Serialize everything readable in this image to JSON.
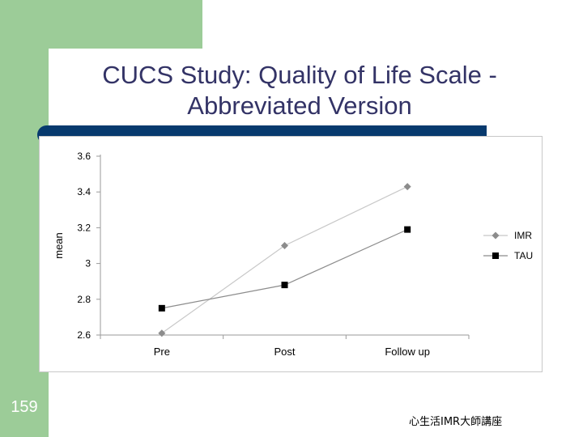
{
  "slide": {
    "title_line1": "CUCS Study: Quality of Life Scale -",
    "title_line2": "Abbreviated Version",
    "number": "159",
    "footer": "心生活IMR大師講座",
    "colors": {
      "green": "#9ccc98",
      "navy": "#073a6e",
      "title": "#333366"
    }
  },
  "chart_data": {
    "type": "line",
    "categories": [
      "Pre",
      "Post",
      "Follow up"
    ],
    "ylabel": "mean",
    "xlabel": "",
    "ylim": [
      2.6,
      3.6
    ],
    "yticks": [
      2.6,
      2.8,
      3,
      3.2,
      3.4,
      3.6
    ],
    "grid": false,
    "legend_position": "right",
    "series": [
      {
        "name": "IMR",
        "values": [
          2.61,
          3.1,
          3.43
        ],
        "color": "#8c8c8c",
        "line_color": "#c8c8c8",
        "marker": "diamond"
      },
      {
        "name": "TAU",
        "values": [
          2.75,
          2.88,
          3.19
        ],
        "color": "#000000",
        "line_color": "#8c8c8c",
        "marker": "square"
      }
    ]
  }
}
